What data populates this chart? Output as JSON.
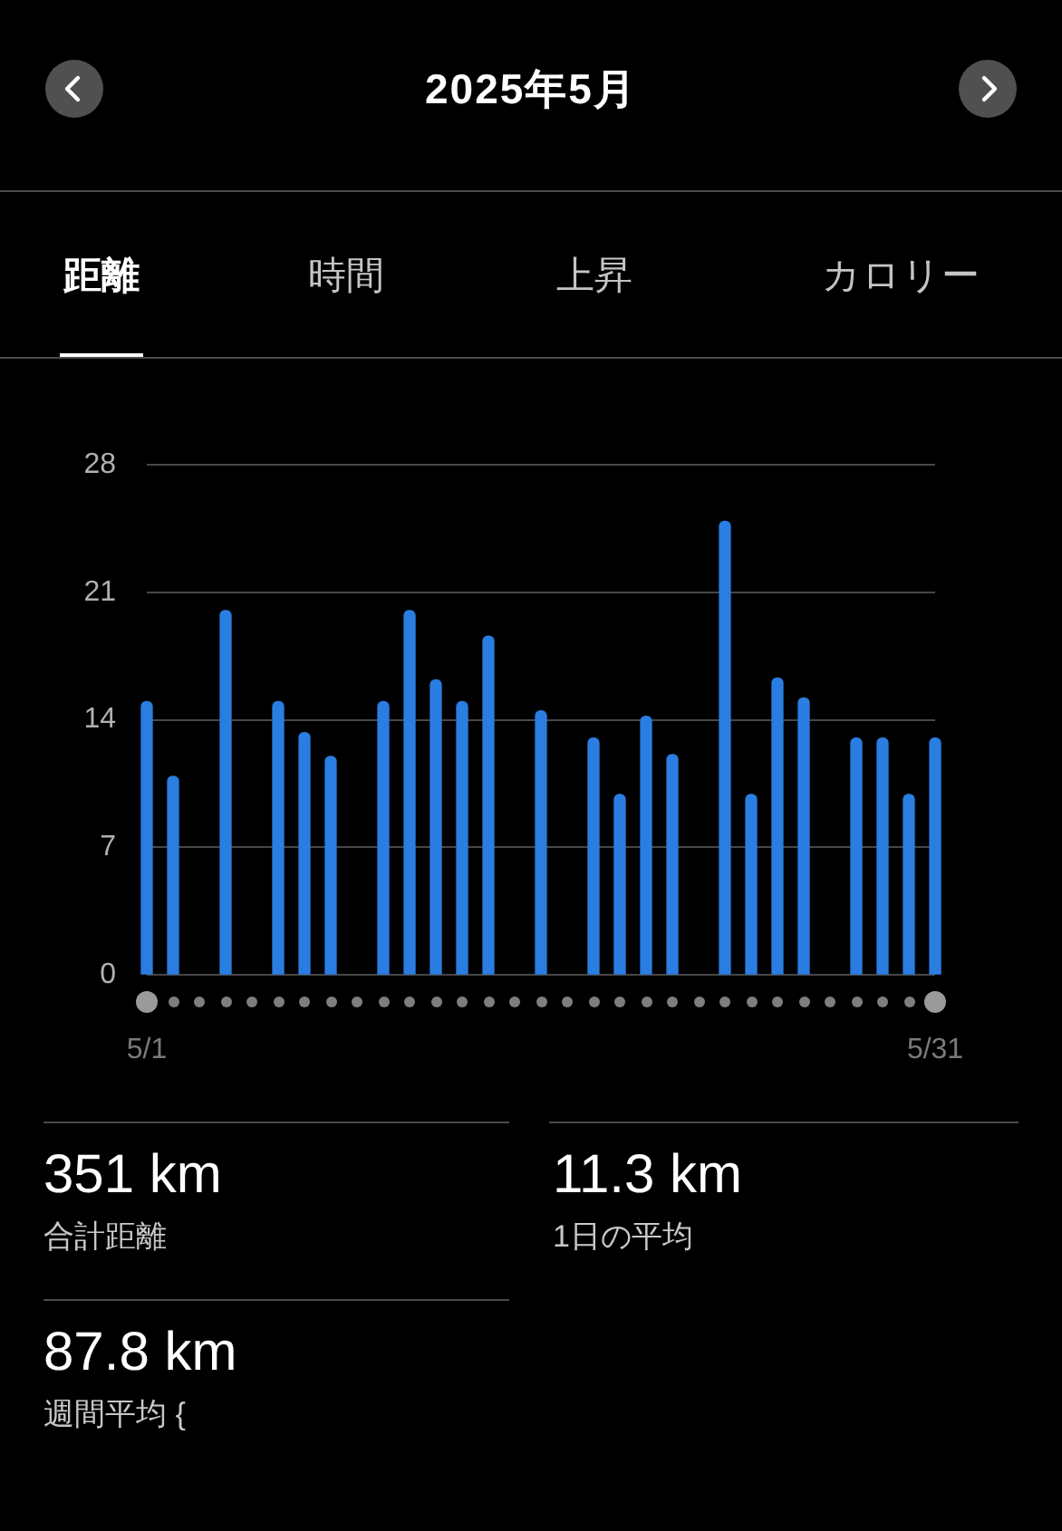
{
  "chart_data": {
    "type": "bar",
    "title": "2025年5月",
    "categories": [
      "5/1",
      null,
      null,
      null,
      null,
      null,
      null,
      null,
      null,
      null,
      null,
      null,
      null,
      null,
      null,
      null,
      null,
      null,
      null,
      null,
      null,
      null,
      null,
      null,
      null,
      null,
      null,
      null,
      null,
      null,
      "5/31"
    ],
    "values": [
      15.0,
      10.9,
      null,
      20.0,
      null,
      15.0,
      13.3,
      12.0,
      null,
      15.0,
      20.0,
      16.2,
      15.0,
      18.6,
      null,
      14.5,
      null,
      13.0,
      9.9,
      14.2,
      12.1,
      null,
      24.9,
      9.9,
      16.3,
      15.2,
      null,
      13.0,
      13.0,
      9.9,
      13.0
    ],
    "color": "#2a7de1",
    "ylim": [
      0,
      28
    ],
    "yticks": [
      0,
      7,
      14,
      21,
      28
    ],
    "grid": "y",
    "annotations": [
      "距離",
      "時間",
      "上昇",
      "カロリー",
      "351 km",
      "合計距離",
      "11.3 km",
      "1日の平均",
      "87.8 km",
      "週間平均 {"
    ]
  }
}
